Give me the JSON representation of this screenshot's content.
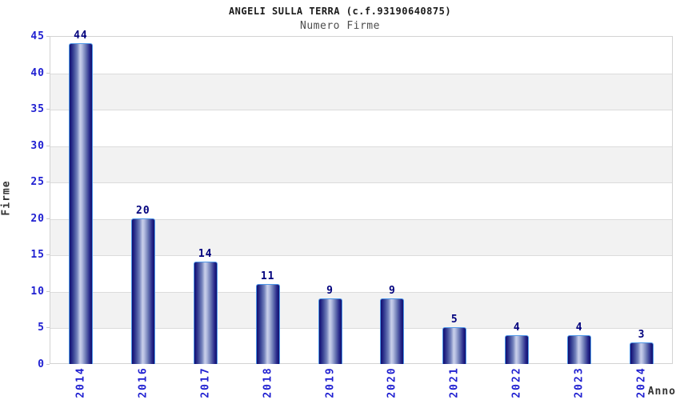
{
  "header": {
    "title": "ANGELI SULLA TERRA (c.f.93190640875)",
    "subtitle": "Numero Firme"
  },
  "chart_data": {
    "type": "bar",
    "title": "ANGELI SULLA TERRA (c.f.93190640875)",
    "subtitle": "Numero Firme",
    "categories": [
      "2014",
      "2016",
      "2017",
      "2018",
      "2019",
      "2020",
      "2021",
      "2022",
      "2023",
      "2024"
    ],
    "values": [
      44,
      20,
      14,
      11,
      9,
      9,
      5,
      4,
      4,
      3
    ],
    "xlabel": "Anno",
    "ylabel": "Firme",
    "ylim": [
      0,
      45
    ],
    "ytick_step": 5,
    "yticks": [
      0,
      5,
      10,
      15,
      20,
      25,
      30,
      35,
      40,
      45
    ],
    "grid": "on",
    "legend": "none",
    "band_fill_alternating": true,
    "colors": {
      "bar_dark": "#10106e",
      "bar_highlight": "#c9d0ea",
      "bar_outline": "#4e97e8",
      "tick_label": "#1f1fd1",
      "value_label": "#00007d",
      "band": "#f2f2f2",
      "gridline": "#dcdcdc",
      "title": "#1a1a1a",
      "subtitle": "#4d4d4d",
      "axis_label": "#333333"
    }
  }
}
